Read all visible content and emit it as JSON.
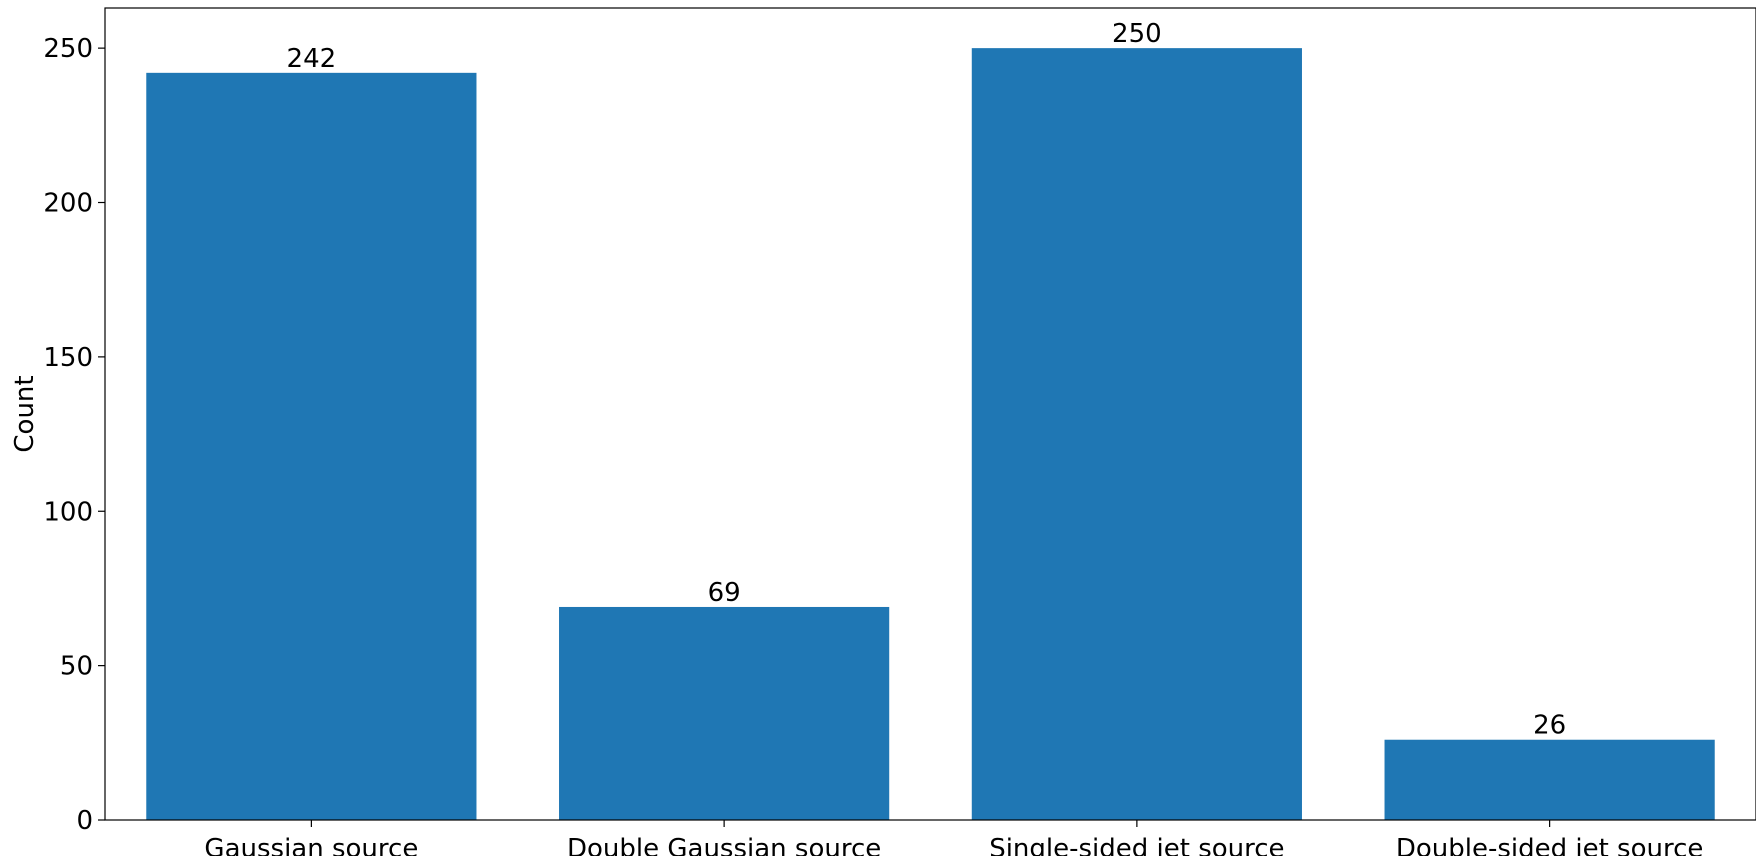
{
  "chart_data": {
    "type": "bar",
    "categories": [
      "Gaussian source",
      "Double Gaussian source",
      "Single-sided jet source",
      "Double-sided jet source"
    ],
    "values": [
      242,
      69,
      250,
      26
    ],
    "data_labels": [
      "242",
      "69",
      "250",
      "26"
    ],
    "title": "",
    "xlabel": "",
    "ylabel": "Count",
    "ylim": [
      0,
      263
    ],
    "yticks": [
      0,
      50,
      100,
      150,
      200,
      250
    ],
    "grid": false,
    "bar_color": "#1f77b4"
  }
}
